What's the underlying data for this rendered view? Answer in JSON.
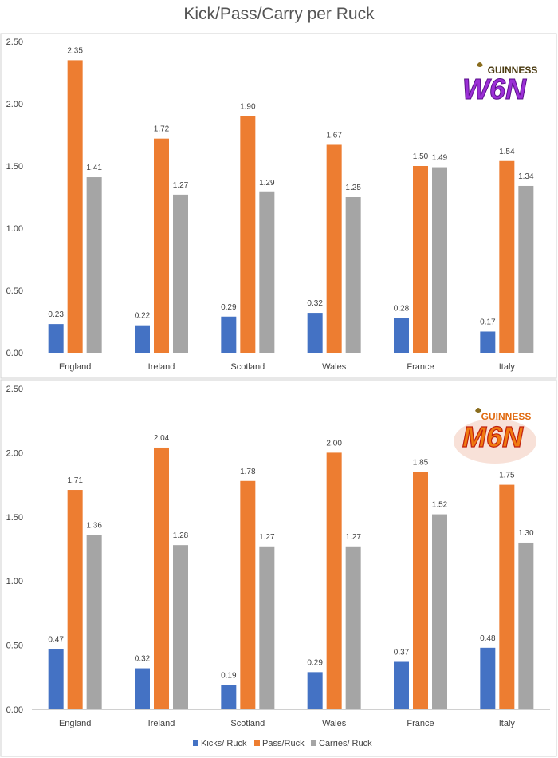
{
  "title": "Kick/Pass/Carry per Ruck",
  "colors": {
    "kicks": "#4472C4",
    "pass": "#ED7D31",
    "carries": "#A5A5A5"
  },
  "legend": [
    "Kicks/ Ruck",
    "Pass/Ruck",
    "Carries/ Ruck"
  ],
  "logos": [
    {
      "brand": "GUINNESS",
      "mark": "W6N"
    },
    {
      "brand": "GUINNESS",
      "mark": "M6N"
    }
  ],
  "chart_data": [
    {
      "type": "bar",
      "title": "",
      "categories": [
        "England",
        "Ireland",
        "Scotland",
        "Wales",
        "France",
        "Italy"
      ],
      "yticks": [
        "0.00",
        "0.50",
        "1.00",
        "1.50",
        "2.00",
        "2.50"
      ],
      "ylim": [
        0,
        2.5
      ],
      "series": [
        {
          "name": "Kicks/ Ruck",
          "values": [
            0.23,
            0.22,
            0.29,
            0.32,
            0.28,
            0.17
          ]
        },
        {
          "name": "Pass/Ruck",
          "values": [
            2.35,
            1.72,
            1.9,
            1.67,
            1.5,
            1.54
          ]
        },
        {
          "name": "Carries/ Ruck",
          "values": [
            1.41,
            1.27,
            1.29,
            1.25,
            1.49,
            1.34
          ]
        }
      ],
      "labels": [
        [
          "0.23",
          "0.22",
          "0.29",
          "0.32",
          "0.28",
          "0.17"
        ],
        [
          "2.35",
          "1.72",
          "1.90",
          "1.67",
          "1.50",
          "1.54"
        ],
        [
          "1.41",
          "1.27",
          "1.29",
          "1.25",
          "1.49",
          "1.34"
        ]
      ]
    },
    {
      "type": "bar",
      "title": "",
      "categories": [
        "England",
        "Ireland",
        "Scotland",
        "Wales",
        "France",
        "Italy"
      ],
      "yticks": [
        "0.00",
        "0.50",
        "1.00",
        "1.50",
        "2.00",
        "2.50"
      ],
      "ylim": [
        0,
        2.5
      ],
      "legend_position": "bottom",
      "series": [
        {
          "name": "Kicks/ Ruck",
          "values": [
            0.47,
            0.32,
            0.19,
            0.29,
            0.37,
            0.48
          ]
        },
        {
          "name": "Pass/Ruck",
          "values": [
            1.71,
            2.04,
            1.78,
            2.0,
            1.85,
            1.75
          ]
        },
        {
          "name": "Carries/ Ruck",
          "values": [
            1.36,
            1.28,
            1.27,
            1.27,
            1.52,
            1.3
          ]
        }
      ],
      "labels": [
        [
          "0.47",
          "0.32",
          "0.19",
          "0.29",
          "0.37",
          "0.48"
        ],
        [
          "1.71",
          "2.04",
          "1.78",
          "2.00",
          "1.85",
          "1.75"
        ],
        [
          "1.36",
          "1.28",
          "1.27",
          "1.27",
          "1.52",
          "1.30"
        ]
      ]
    }
  ]
}
